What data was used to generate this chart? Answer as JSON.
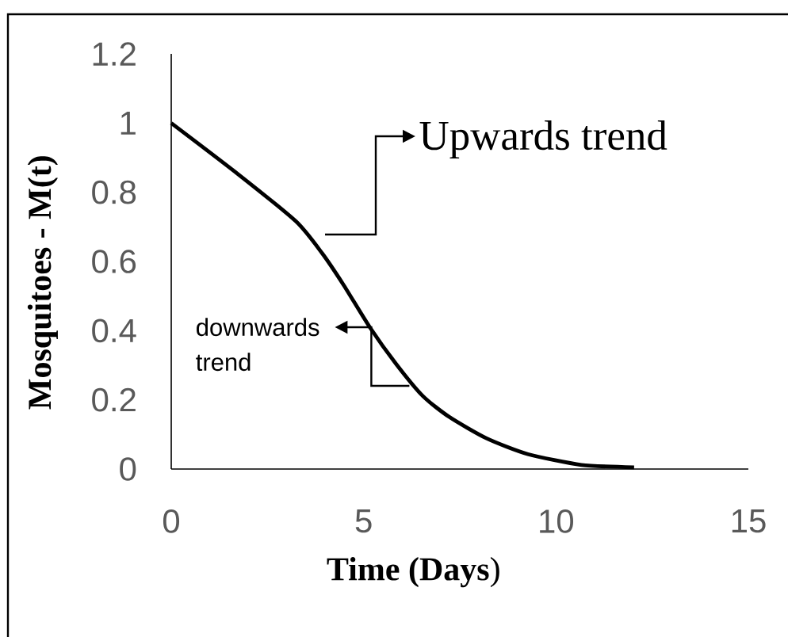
{
  "chart_data": {
    "type": "line",
    "xlabel": "**Time (Days**)",
    "ylabel": "Mosquitoes - M(t)",
    "x": [
      0,
      1.73,
      3.24,
      3.92,
      4.48,
      5.16,
      5.85,
      6.54,
      7.22,
      8.19,
      9.27,
      10.66,
      12.03
    ],
    "series": [
      {
        "color": "#000000",
        "values": [
          1,
          0.853,
          0.716,
          0.624,
          0.532,
          0.41,
          0.303,
          0.211,
          0.151,
          0.089,
          0.043,
          0.012,
          0.005
        ]
      }
    ],
    "xlim": [
      0,
      15
    ],
    "xticks": [
      0,
      5,
      10,
      15
    ],
    "ylim": [
      0,
      1.2
    ],
    "yticks": [
      0,
      0.2,
      0.4,
      0.6,
      0.8,
      1,
      1.2
    ],
    "grid": false,
    "marker": "none",
    "line_style": "solid",
    "annotations": [
      "Upwards trend",
      {
        "text": "downwards trend",
        "x": 5.2,
        "y": 0.41
      }
    ]
  }
}
